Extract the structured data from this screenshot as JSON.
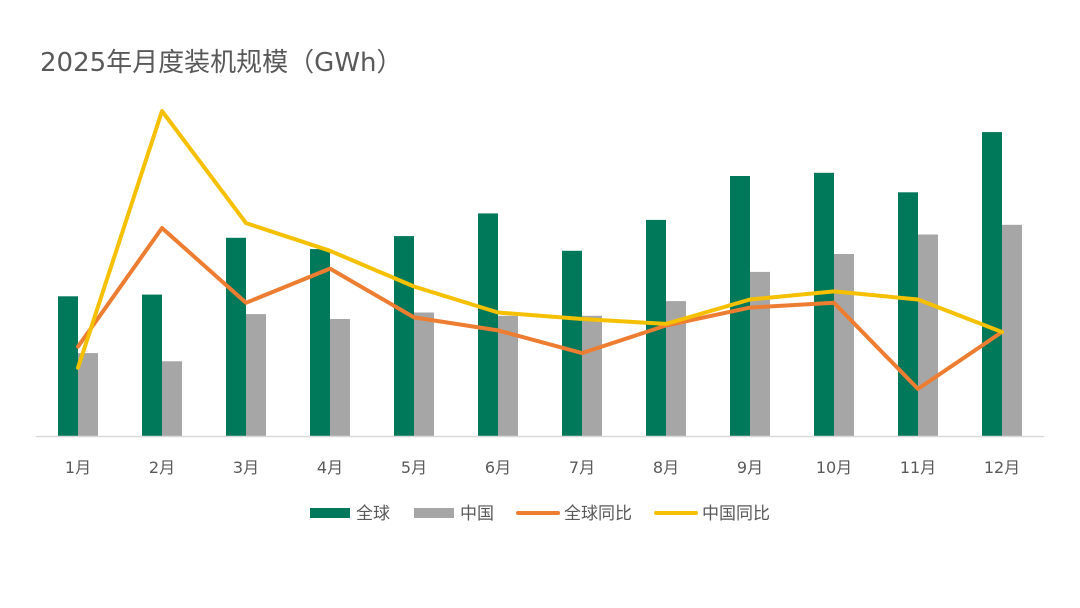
{
  "chart_data": {
    "type": "bar",
    "title": "2025年月度装机规模（GWh）",
    "categories": [
      "1月",
      "2月",
      "3月",
      "4月",
      "5月",
      "6月",
      "7月",
      "8月",
      "9月",
      "10月",
      "11月",
      "12月"
    ],
    "bar_range": [
      0,
      100
    ],
    "line_range": [
      0,
      100
    ],
    "series": [
      {
        "name": "全球",
        "kind": "bar",
        "color": "#00785A",
        "values": [
          43,
          43.5,
          61,
          57.5,
          61.5,
          68.5,
          57,
          66.5,
          80,
          81,
          75,
          93.5
        ]
      },
      {
        "name": "中国",
        "kind": "bar",
        "color": "#A6A6A6",
        "values": [
          25.5,
          23,
          37.5,
          36,
          38,
          37,
          37,
          41.5,
          50.5,
          56,
          62,
          65
        ]
      },
      {
        "name": "全球同比",
        "kind": "line",
        "color": "#ED7D31",
        "values": [
          27.5,
          64,
          41,
          51.5,
          36.5,
          32.5,
          25.5,
          34,
          39.5,
          41,
          14.5,
          32
        ]
      },
      {
        "name": "中国同比",
        "kind": "line",
        "color": "#F5C000",
        "values": [
          21,
          100,
          65.5,
          57,
          46,
          38,
          36,
          34.5,
          42,
          44.5,
          42,
          32
        ]
      }
    ],
    "legend": "bottom",
    "grid": false
  }
}
